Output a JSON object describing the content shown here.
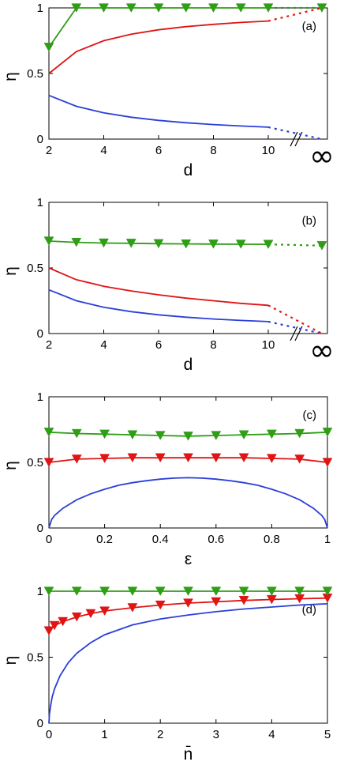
{
  "colors": {
    "blue": "#2a3fd8",
    "red": "#e01414",
    "green": "#2f9e16"
  },
  "chart_data": [
    {
      "type": "line",
      "panel_label": "(a)",
      "xlabel": "d",
      "ylabel": "η",
      "xlim": [
        2,
        11.9
      ],
      "ylim": [
        0,
        1
      ],
      "xticks": [
        "2",
        "4",
        "6",
        "8",
        "10"
      ],
      "yticks": [
        "0",
        "0.5",
        "1"
      ],
      "infinity_label": "∞",
      "series": [
        {
          "color": "blue",
          "x": [
            2,
            3,
            4,
            5,
            6,
            7,
            8,
            9,
            10
          ],
          "values": [
            0.333,
            0.25,
            0.2,
            0.167,
            0.143,
            0.125,
            0.111,
            0.1,
            0.091
          ],
          "limit": 0.0,
          "markers": false
        },
        {
          "color": "red",
          "x": [
            2,
            3,
            4,
            5,
            6,
            7,
            8,
            9,
            10
          ],
          "values": [
            0.5,
            0.667,
            0.75,
            0.8,
            0.833,
            0.857,
            0.875,
            0.889,
            0.9
          ],
          "limit": 1.0,
          "markers": false
        },
        {
          "color": "green",
          "x": [
            2,
            3,
            4,
            5,
            6,
            7,
            8,
            9,
            10
          ],
          "values": [
            0.7,
            1,
            1,
            1,
            1,
            1,
            1,
            1,
            1
          ],
          "limit": 1.0,
          "markers": true
        }
      ]
    },
    {
      "type": "line",
      "panel_label": "(b)",
      "xlabel": "d",
      "ylabel": "η",
      "xlim": [
        2,
        11.9
      ],
      "ylim": [
        0,
        1
      ],
      "xticks": [
        "2",
        "4",
        "6",
        "8",
        "10"
      ],
      "yticks": [
        "0",
        "0.5",
        "1"
      ],
      "infinity_label": "∞",
      "series": [
        {
          "color": "blue",
          "x": [
            2,
            3,
            4,
            5,
            6,
            7,
            8,
            9,
            10
          ],
          "values": [
            0.333,
            0.25,
            0.2,
            0.167,
            0.143,
            0.125,
            0.111,
            0.1,
            0.091
          ],
          "limit": 0.0,
          "markers": false
        },
        {
          "color": "red",
          "x": [
            2,
            3,
            4,
            5,
            6,
            7,
            8,
            9,
            10
          ],
          "values": [
            0.5,
            0.41,
            0.36,
            0.325,
            0.295,
            0.27,
            0.25,
            0.23,
            0.215
          ],
          "limit": 0.0,
          "markers": false
        },
        {
          "color": "green",
          "x": [
            2,
            3,
            4,
            5,
            6,
            7,
            8,
            9,
            10
          ],
          "values": [
            0.705,
            0.695,
            0.69,
            0.688,
            0.685,
            0.683,
            0.682,
            0.681,
            0.68
          ],
          "limit": 0.67,
          "markers": true
        }
      ]
    },
    {
      "type": "line",
      "panel_label": "(c)",
      "xlabel": "ε",
      "ylabel": "η",
      "xlim": [
        0,
        1
      ],
      "ylim": [
        0,
        1
      ],
      "xticks": [
        "0",
        "0.2",
        "0.4",
        "0.6",
        "0.8",
        "1"
      ],
      "yticks": [
        "0",
        "0.5",
        "1"
      ],
      "series": [
        {
          "color": "blue",
          "x": [
            0,
            0.01,
            0.02,
            0.05,
            0.1,
            0.15,
            0.2,
            0.25,
            0.3,
            0.35,
            0.4,
            0.45,
            0.5,
            0.55,
            0.6,
            0.65,
            0.7,
            0.75,
            0.8,
            0.85,
            0.9,
            0.95,
            0.98,
            0.99,
            1
          ],
          "values": [
            0,
            0.065,
            0.095,
            0.15,
            0.215,
            0.26,
            0.295,
            0.325,
            0.345,
            0.36,
            0.372,
            0.38,
            0.383,
            0.38,
            0.372,
            0.36,
            0.345,
            0.325,
            0.295,
            0.26,
            0.215,
            0.15,
            0.095,
            0.065,
            0
          ],
          "markers": false
        },
        {
          "color": "red",
          "x": [
            0,
            0.1,
            0.2,
            0.3,
            0.4,
            0.5,
            0.6,
            0.7,
            0.8,
            0.9,
            1
          ],
          "values": [
            0.5,
            0.525,
            0.53,
            0.535,
            0.535,
            0.535,
            0.535,
            0.535,
            0.53,
            0.525,
            0.5
          ],
          "markers": true
        },
        {
          "color": "green",
          "x": [
            0,
            0.1,
            0.2,
            0.3,
            0.4,
            0.5,
            0.6,
            0.7,
            0.8,
            0.9,
            1
          ],
          "values": [
            0.73,
            0.72,
            0.715,
            0.71,
            0.705,
            0.7,
            0.705,
            0.71,
            0.715,
            0.72,
            0.73
          ],
          "markers": true
        }
      ]
    },
    {
      "type": "line",
      "panel_label": "(d)",
      "xlabel": "n̄",
      "ylabel": "η",
      "xlim": [
        0,
        5
      ],
      "ylim": [
        0,
        1
      ],
      "xticks": [
        "0",
        "1",
        "2",
        "3",
        "4",
        "5"
      ],
      "yticks": [
        "0",
        "0.5",
        "1"
      ],
      "series": [
        {
          "color": "blue",
          "x": [
            0,
            0.01,
            0.03,
            0.06,
            0.1,
            0.2,
            0.35,
            0.5,
            0.75,
            1,
            1.5,
            2,
            2.5,
            3,
            3.5,
            4,
            4.5,
            5
          ],
          "values": [
            0,
            0.07,
            0.13,
            0.2,
            0.26,
            0.36,
            0.46,
            0.53,
            0.61,
            0.67,
            0.745,
            0.79,
            0.82,
            0.845,
            0.865,
            0.88,
            0.895,
            0.905
          ],
          "markers": false
        },
        {
          "color": "red",
          "x": [
            0,
            0.1,
            0.25,
            0.5,
            0.75,
            1,
            1.5,
            2,
            2.5,
            3,
            3.5,
            4,
            4.5,
            5
          ],
          "values": [
            0.7,
            0.74,
            0.77,
            0.805,
            0.83,
            0.85,
            0.875,
            0.895,
            0.91,
            0.92,
            0.93,
            0.937,
            0.943,
            0.948
          ],
          "markers": true
        },
        {
          "color": "green",
          "x": [
            0,
            0.5,
            1,
            1.5,
            2,
            2.5,
            3,
            3.5,
            4,
            4.5,
            5
          ],
          "values": [
            1,
            1,
            1,
            1,
            1,
            1,
            1,
            1,
            1,
            1,
            1
          ],
          "markers": true
        }
      ]
    }
  ]
}
